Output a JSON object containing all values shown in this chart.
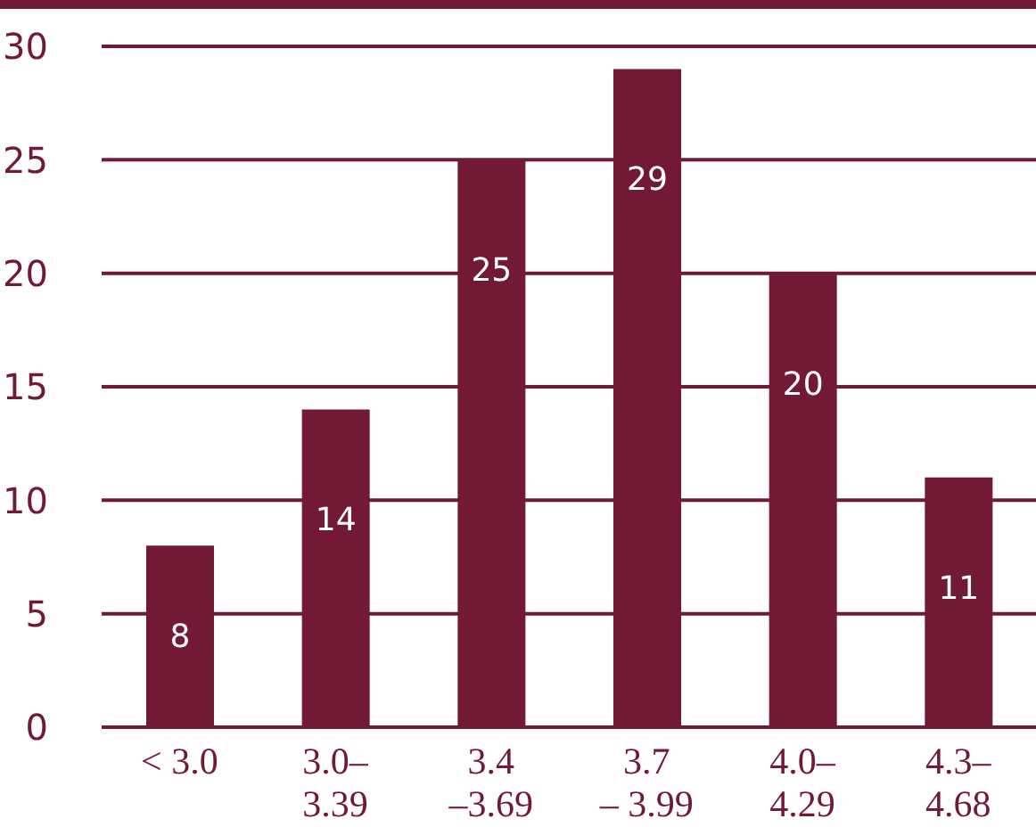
{
  "chart_data": {
    "type": "bar",
    "categories": [
      "< 3.0",
      "3.0–\n3.39",
      "3.4\n–3.69",
      "3.7\n– 3.99",
      "4.0–\n4.29",
      "4.3–\n4.68"
    ],
    "values": [
      8,
      14,
      25,
      29,
      20,
      11
    ],
    "value_labels": [
      "8",
      "14",
      "25",
      "29",
      "20",
      "11"
    ],
    "color": "#721a35",
    "ylim": [
      0,
      30
    ],
    "yticks": [
      0,
      5,
      10,
      15,
      20,
      25,
      30
    ],
    "grid": "y",
    "legend": false
  }
}
